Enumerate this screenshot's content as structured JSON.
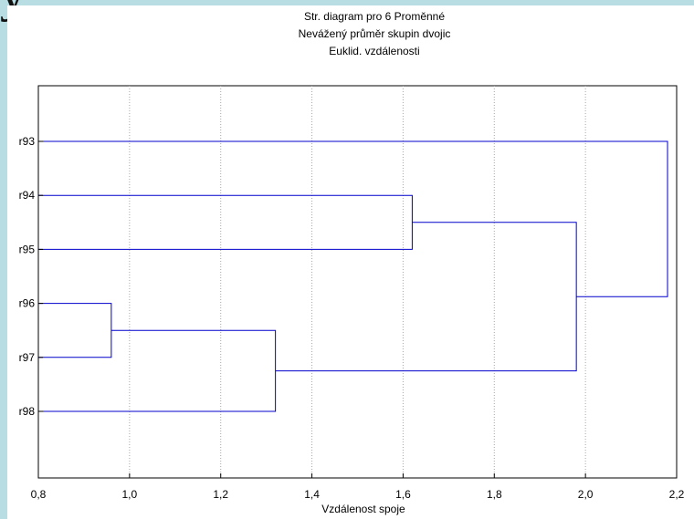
{
  "slide": {
    "partial_heading": "y"
  },
  "chart_data": {
    "type": "dendrogram",
    "title_lines": [
      "Str. diagram pro 6   Proměnné",
      "Nevážený průměr skupin dvojic",
      "Euklid. vzdálenosti"
    ],
    "xlabel": "Vzdálenost spoje",
    "ylabel": "",
    "xlim": [
      0.8,
      2.2
    ],
    "x_ticks": [
      0.8,
      1.0,
      1.2,
      1.4,
      1.6,
      1.8,
      2.0,
      2.2
    ],
    "x_tick_labels": [
      "0,8",
      "1,0",
      "1,2",
      "1,4",
      "1,6",
      "1,8",
      "2,0",
      "2,2"
    ],
    "grid_x": true,
    "leaves": [
      "r93",
      "r94",
      "r95",
      "r96",
      "r97",
      "r98"
    ],
    "merges": [
      {
        "a": "r96",
        "b": "r97",
        "distance": 0.96
      },
      {
        "a": "r96+r97",
        "b": "r98",
        "distance": 1.32
      },
      {
        "a": "r94",
        "b": "r95",
        "distance": 1.62
      },
      {
        "a": "r94+r95",
        "b": "r96+r97+r98",
        "distance": 1.98
      },
      {
        "a": "r93",
        "b": "r94+r95+r96+r97+r98",
        "distance": 2.18
      }
    ],
    "colors": {
      "link": "#0000cc",
      "grid": "#a8a8a8",
      "background": "#b8dde3"
    }
  }
}
